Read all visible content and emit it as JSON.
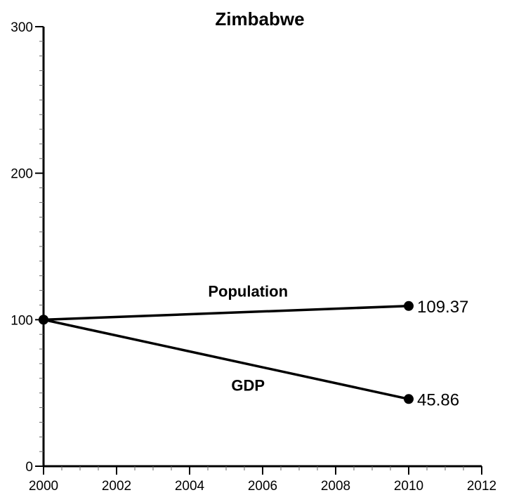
{
  "chart_data": {
    "type": "line",
    "title": "Zimbabwe",
    "xlabel": "",
    "ylabel": "",
    "xlim": [
      2000,
      2012
    ],
    "ylim": [
      0,
      300
    ],
    "x_ticks": [
      2000,
      2002,
      2004,
      2006,
      2008,
      2010,
      2012
    ],
    "y_ticks": [
      0,
      100,
      200,
      300
    ],
    "grid": false,
    "legend": "none",
    "series": [
      {
        "name": "Population",
        "x": [
          2000,
          2010
        ],
        "values": [
          100,
          109.37
        ],
        "end_label": "109.37"
      },
      {
        "name": "GDP",
        "x": [
          2000,
          2010
        ],
        "values": [
          100,
          45.86
        ],
        "end_label": "45.86"
      }
    ],
    "colors": {
      "line": "#000000",
      "axis": "#000000",
      "background": "#ffffff"
    }
  }
}
